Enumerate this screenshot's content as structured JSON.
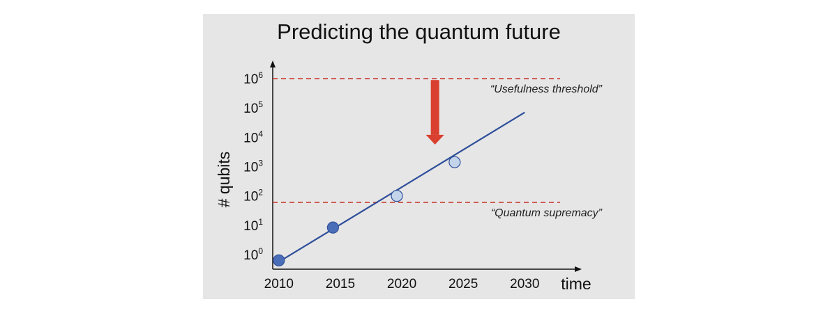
{
  "chart_data": {
    "type": "line",
    "title": "Predicting the quantum future",
    "xlabel": "time",
    "ylabel": "# qubits",
    "x_ticks": [
      "2010",
      "2015",
      "2020",
      "2025",
      "2030"
    ],
    "xlim": [
      2009.5,
      2033.5
    ],
    "y_ticks": [
      {
        "base": "10",
        "exp": "0",
        "value": 0
      },
      {
        "base": "10",
        "exp": "1",
        "value": 1
      },
      {
        "base": "10",
        "exp": "2",
        "value": 2
      },
      {
        "base": "10",
        "exp": "3",
        "value": 3
      },
      {
        "base": "10",
        "exp": "4",
        "value": 4
      },
      {
        "base": "10",
        "exp": "5",
        "value": 5
      },
      {
        "base": "10",
        "exp": "6",
        "value": 6
      }
    ],
    "ylim_log10": [
      -0.5,
      6.5
    ],
    "trend_line": {
      "x": [
        2010.2,
        2030.0
      ],
      "log10_y": [
        -0.2,
        4.85
      ]
    },
    "points": [
      {
        "x": 2010.0,
        "log10_y": -0.2,
        "color": "#4a6fb8"
      },
      {
        "x": 2014.4,
        "log10_y": 0.92,
        "color": "#4a6fb8"
      },
      {
        "x": 2019.6,
        "log10_y": 2.0,
        "color": "#c3d4ea"
      },
      {
        "x": 2024.3,
        "log10_y": 3.15,
        "color": "#c3d4ea"
      }
    ],
    "thresholds": [
      {
        "label": "“Usefulness threshold”",
        "log10_y": 6.0
      },
      {
        "label": "“Quantum supremacy”",
        "log10_y": 1.78
      }
    ],
    "arrow": {
      "x": 2022.7,
      "from_log10_y": 5.95,
      "to_log10_y": 3.75,
      "color": "#d9402f"
    },
    "colors": {
      "line": "#2f4f9a",
      "threshold": "#c8392e",
      "axis": "#111111"
    }
  }
}
